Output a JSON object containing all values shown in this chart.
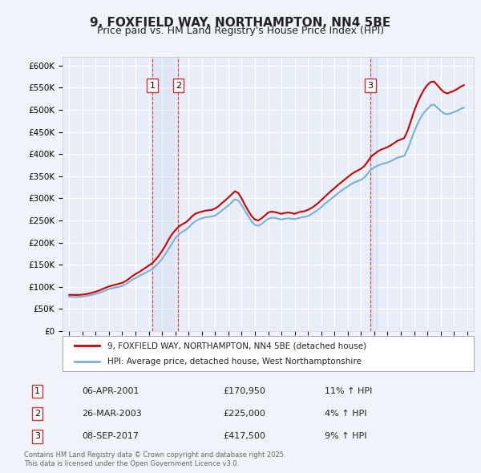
{
  "title": "9, FOXFIELD WAY, NORTHAMPTON, NN4 5BE",
  "subtitle": "Price paid vs. HM Land Registry's House Price Index (HPI)",
  "ylabel_ticks": [
    "£0",
    "£50K",
    "£100K",
    "£150K",
    "£200K",
    "£250K",
    "£300K",
    "£350K",
    "£400K",
    "£450K",
    "£500K",
    "£550K",
    "£600K"
  ],
  "ylim": [
    0,
    620000
  ],
  "yticks": [
    0,
    50000,
    100000,
    150000,
    200000,
    250000,
    300000,
    350000,
    400000,
    450000,
    500000,
    550000,
    600000
  ],
  "background_color": "#f0f4fa",
  "plot_bg": "#e8eef8",
  "legend_line1": "9, FOXFIELD WAY, NORTHAMPTON, NN4 5BE (detached house)",
  "legend_line2": "HPI: Average price, detached house, West Northamptonshire",
  "red_color": "#cc0000",
  "blue_color": "#7ab0d4",
  "transactions": [
    {
      "num": 1,
      "date": "06-APR-2001",
      "price": "£170,950",
      "hpi": "11% ↑ HPI",
      "year": 2001.27
    },
    {
      "num": 2,
      "date": "26-MAR-2003",
      "price": "£225,000",
      "hpi": "4% ↑ HPI",
      "year": 2003.23
    },
    {
      "num": 3,
      "date": "08-SEP-2017",
      "price": "£417,500",
      "hpi": "9% ↑ HPI",
      "year": 2017.69
    }
  ],
  "footnote": "Contains HM Land Registry data © Crown copyright and database right 2025.\nThis data is licensed under the Open Government Licence v3.0.",
  "hpi_data": {
    "years": [
      1995.0,
      1995.25,
      1995.5,
      1995.75,
      1996.0,
      1996.25,
      1996.5,
      1996.75,
      1997.0,
      1997.25,
      1997.5,
      1997.75,
      1998.0,
      1998.25,
      1998.5,
      1998.75,
      1999.0,
      1999.25,
      1999.5,
      1999.75,
      2000.0,
      2000.25,
      2000.5,
      2000.75,
      2001.0,
      2001.25,
      2001.5,
      2001.75,
      2002.0,
      2002.25,
      2002.5,
      2002.75,
      2003.0,
      2003.25,
      2003.5,
      2003.75,
      2004.0,
      2004.25,
      2004.5,
      2004.75,
      2005.0,
      2005.25,
      2005.5,
      2005.75,
      2006.0,
      2006.25,
      2006.5,
      2006.75,
      2007.0,
      2007.25,
      2007.5,
      2007.75,
      2008.0,
      2008.25,
      2008.5,
      2008.75,
      2009.0,
      2009.25,
      2009.5,
      2009.75,
      2010.0,
      2010.25,
      2010.5,
      2010.75,
      2011.0,
      2011.25,
      2011.5,
      2011.75,
      2012.0,
      2012.25,
      2012.5,
      2012.75,
      2013.0,
      2013.25,
      2013.5,
      2013.75,
      2014.0,
      2014.25,
      2014.5,
      2014.75,
      2015.0,
      2015.25,
      2015.5,
      2015.75,
      2016.0,
      2016.25,
      2016.5,
      2016.75,
      2017.0,
      2017.25,
      2017.5,
      2017.75,
      2018.0,
      2018.25,
      2018.5,
      2018.75,
      2019.0,
      2019.25,
      2019.5,
      2019.75,
      2020.0,
      2020.25,
      2020.5,
      2020.75,
      2021.0,
      2021.25,
      2021.5,
      2021.75,
      2022.0,
      2022.25,
      2022.5,
      2022.75,
      2023.0,
      2023.25,
      2023.5,
      2023.75,
      2024.0,
      2024.25,
      2024.5,
      2024.75
    ],
    "hpi_values": [
      78000,
      77500,
      77000,
      77500,
      78000,
      79000,
      80500,
      82000,
      84000,
      86000,
      89000,
      92000,
      95000,
      97000,
      99000,
      100000,
      102000,
      106000,
      111000,
      116000,
      120000,
      124000,
      128000,
      132000,
      136000,
      140000,
      147000,
      154000,
      163000,
      174000,
      186000,
      198000,
      210000,
      218000,
      224000,
      228000,
      234000,
      242000,
      248000,
      252000,
      255000,
      257000,
      258000,
      259000,
      261000,
      266000,
      272000,
      278000,
      284000,
      291000,
      298000,
      295000,
      285000,
      272000,
      260000,
      248000,
      240000,
      238000,
      242000,
      248000,
      254000,
      256000,
      256000,
      254000,
      252000,
      254000,
      255000,
      254000,
      253000,
      255000,
      257000,
      258000,
      260000,
      264000,
      269000,
      274000,
      280000,
      287000,
      293000,
      299000,
      305000,
      311000,
      317000,
      322000,
      327000,
      332000,
      336000,
      339000,
      342000,
      347000,
      356000,
      365000,
      370000,
      374000,
      377000,
      379000,
      381000,
      384000,
      388000,
      392000,
      394000,
      396000,
      410000,
      430000,
      450000,
      468000,
      482000,
      494000,
      502000,
      510000,
      512000,
      505000,
      498000,
      492000,
      490000,
      492000,
      495000,
      498000,
      502000,
      505000
    ],
    "price_values": [
      82000,
      82000,
      81500,
      82000,
      82500,
      83500,
      85000,
      87000,
      89000,
      91500,
      95000,
      98000,
      101000,
      103000,
      105000,
      107000,
      109000,
      113000,
      118000,
      124000,
      129000,
      133000,
      138000,
      143000,
      148000,
      153000,
      161000,
      170000,
      181000,
      193000,
      207000,
      219000,
      228000,
      236000,
      241000,
      245000,
      251000,
      259000,
      265000,
      268000,
      270000,
      272000,
      273000,
      274000,
      277000,
      282000,
      289000,
      295000,
      302000,
      309000,
      316000,
      312000,
      300000,
      285000,
      272000,
      260000,
      252000,
      250000,
      255000,
      261000,
      268000,
      270000,
      269000,
      267000,
      265000,
      267000,
      268000,
      267000,
      265000,
      268000,
      270000,
      271000,
      274000,
      278000,
      283000,
      289000,
      296000,
      303000,
      310000,
      317000,
      323000,
      330000,
      336000,
      342000,
      348000,
      354000,
      359000,
      363000,
      367000,
      373000,
      383000,
      394000,
      400000,
      406000,
      410000,
      413000,
      416000,
      420000,
      425000,
      430000,
      433000,
      436000,
      452000,
      474000,
      497000,
      516000,
      532000,
      546000,
      556000,
      563000,
      564000,
      556000,
      547000,
      540000,
      537000,
      540000,
      543000,
      547000,
      552000,
      556000
    ]
  }
}
